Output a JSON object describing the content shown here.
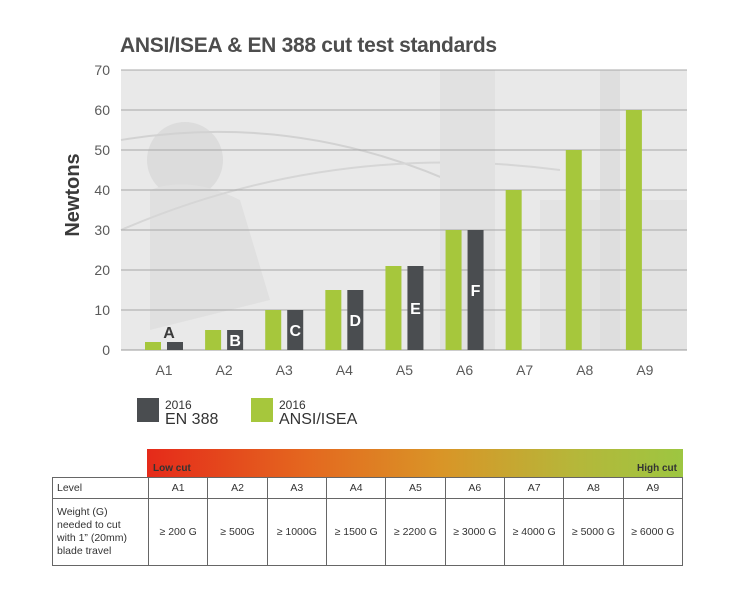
{
  "chart_data": {
    "type": "bar",
    "title": "ANSI/ISEA & EN 388 cut test standards",
    "ylabel": "Newtons",
    "xlabel": "",
    "ylim": [
      0,
      70
    ],
    "yticks": [
      0,
      10,
      20,
      30,
      40,
      50,
      60,
      70
    ],
    "categories": [
      "A1",
      "A2",
      "A3",
      "A4",
      "A5",
      "A6",
      "A7",
      "A8",
      "A9"
    ],
    "series": [
      {
        "name": "ANSI/ISEA",
        "year": "2016",
        "color": "#a6c73c",
        "values": [
          2,
          5,
          10,
          15,
          21,
          30,
          40,
          50,
          60
        ]
      },
      {
        "name": "EN 388",
        "year": "2016",
        "color": "#4a4d50",
        "values": [
          2,
          5,
          10,
          15,
          21,
          30,
          null,
          null,
          null
        ],
        "bar_labels": [
          "A",
          "B",
          "C",
          "D",
          "E",
          "F",
          "",
          "",
          ""
        ]
      }
    ]
  },
  "legend": {
    "en": {
      "year": "2016",
      "name": "EN 388"
    },
    "ansi": {
      "year": "2016",
      "name": "ANSI/ISEA"
    }
  },
  "scale": {
    "low_label": "Low cut",
    "high_label": "High cut"
  },
  "table": {
    "level_header": "Level",
    "weight_header_lines": [
      "Weight (G)",
      "needed to cut",
      "with 1” (20mm)",
      "blade travel"
    ],
    "levels": [
      "A1",
      "A2",
      "A3",
      "A4",
      "A5",
      "A6",
      "A7",
      "A8",
      "A9"
    ],
    "weights": [
      "≥ 200 G",
      "≥ 500G",
      "≥ 1000G",
      "≥ 1500 G",
      "≥ 2200 G",
      "≥ 3000 G",
      "≥ 4000 G",
      "≥ 5000 G",
      "≥ 6000 G"
    ]
  }
}
